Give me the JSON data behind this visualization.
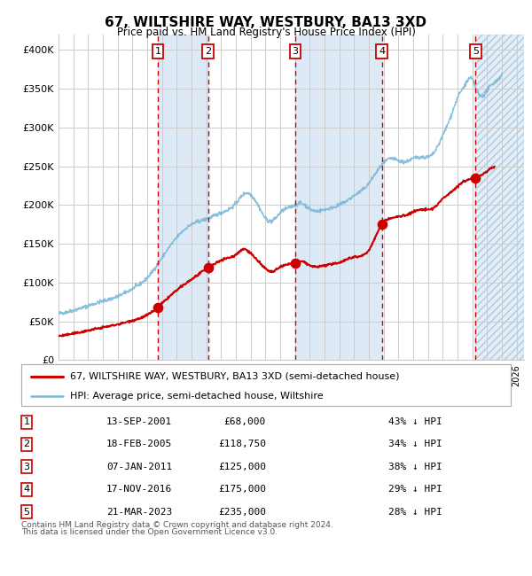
{
  "title": "67, WILTSHIRE WAY, WESTBURY, BA13 3XD",
  "subtitle": "Price paid vs. HM Land Registry's House Price Index (HPI)",
  "ylim": [
    0,
    420000
  ],
  "yticks": [
    0,
    50000,
    100000,
    150000,
    200000,
    250000,
    300000,
    350000,
    400000
  ],
  "ytick_labels": [
    "£0",
    "£50K",
    "£100K",
    "£150K",
    "£200K",
    "£250K",
    "£300K",
    "£350K",
    "£400K"
  ],
  "xlim_start": 1995.0,
  "xlim_end": 2026.5,
  "hpi_color": "#7ab8d9",
  "price_color": "#cc0000",
  "grid_color": "#cccccc",
  "shade_color": "#ddeaf5",
  "hatch_color": "#e4eef7",
  "bg_color": "#ffffff",
  "transactions": [
    {
      "num": 1,
      "date_float": 2001.71,
      "price": 68000,
      "pct": "43%",
      "label": "13-SEP-2001",
      "price_label": "£68,000"
    },
    {
      "num": 2,
      "date_float": 2005.13,
      "price": 118750,
      "pct": "34%",
      "label": "18-FEB-2005",
      "price_label": "£118,750"
    },
    {
      "num": 3,
      "date_float": 2011.03,
      "price": 125000,
      "pct": "38%",
      "label": "07-JAN-2011",
      "price_label": "£125,000"
    },
    {
      "num": 4,
      "date_float": 2016.88,
      "price": 175000,
      "pct": "29%",
      "label": "17-NOV-2016",
      "price_label": "£175,000"
    },
    {
      "num": 5,
      "date_float": 2023.22,
      "price": 235000,
      "pct": "28%",
      "label": "21-MAR-2023",
      "price_label": "£235,000"
    }
  ],
  "legend_line1": "67, WILTSHIRE WAY, WESTBURY, BA13 3XD (semi-detached house)",
  "legend_line2": "HPI: Average price, semi-detached house, Wiltshire",
  "footnote1": "Contains HM Land Registry data © Crown copyright and database right 2024.",
  "footnote2": "This data is licensed under the Open Government Licence v3.0."
}
